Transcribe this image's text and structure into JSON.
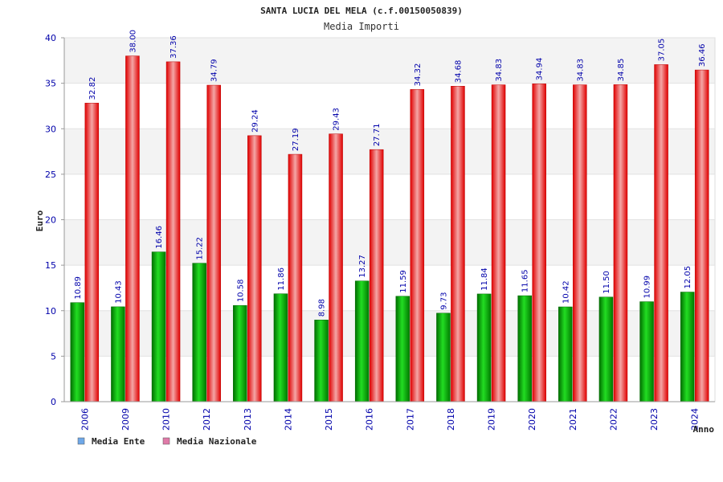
{
  "chart_data": {
    "type": "bar",
    "title": "SANTA LUCIA DEL MELA (c.f.00150050839)",
    "subtitle": "Media Importi",
    "xlabel": "Anno",
    "ylabel": "Euro",
    "ylim": [
      0,
      40
    ],
    "yticks": [
      0,
      5,
      10,
      15,
      20,
      25,
      30,
      35,
      40
    ],
    "categories": [
      "2006",
      "2009",
      "2010",
      "2012",
      "2013",
      "2014",
      "2015",
      "2016",
      "2017",
      "2018",
      "2019",
      "2020",
      "2021",
      "2022",
      "2023",
      "2024"
    ],
    "series": [
      {
        "name": "Media Ente",
        "color": "#00b000",
        "legend_color": "#6fa8e8",
        "values": [
          10.89,
          10.43,
          16.46,
          15.22,
          10.58,
          11.86,
          8.98,
          13.27,
          11.59,
          9.73,
          11.84,
          11.65,
          10.42,
          11.5,
          10.99,
          12.05
        ],
        "labels": [
          "10.89",
          "10.43",
          "16.46",
          "15.22",
          "10.58",
          "11.86",
          "8.98",
          "13.27",
          "11.59",
          "9.73",
          "11.84",
          "11.65",
          "10.42",
          "11.50",
          "10.99",
          "12.05"
        ]
      },
      {
        "name": "Media Nazionale",
        "color": "#ee1111",
        "legend_color": "#e07aa8",
        "values": [
          32.82,
          38.0,
          37.36,
          34.79,
          29.24,
          27.19,
          29.43,
          27.71,
          34.32,
          34.68,
          34.83,
          34.94,
          34.83,
          34.85,
          37.05,
          36.46
        ],
        "labels": [
          "32.82",
          "38.00",
          "37.36",
          "34.79",
          "29.24",
          "27.19",
          "29.43",
          "27.71",
          "34.32",
          "34.68",
          "34.83",
          "34.94",
          "34.83",
          "34.85",
          "37.05",
          "36.46"
        ]
      }
    ],
    "grid": true,
    "legend_position": "bottom-left"
  }
}
